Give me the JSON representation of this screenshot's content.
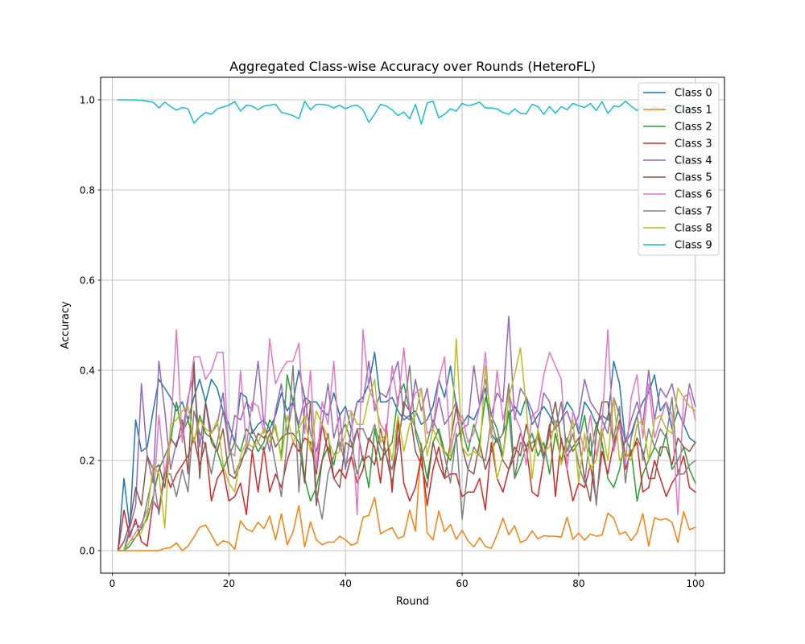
{
  "chart_data": {
    "type": "line",
    "title": "Aggregated Class-wise Accuracy over Rounds (HeteroFL)",
    "xlabel": "Round",
    "ylabel": "Accuracy",
    "xlim": [
      -2,
      105
    ],
    "ylim": [
      -0.05,
      1.05
    ],
    "x_ticks": [
      0,
      20,
      40,
      60,
      80,
      100
    ],
    "y_ticks": [
      0.0,
      0.2,
      0.4,
      0.6,
      0.8,
      1.0
    ],
    "x_tick_labels": [
      "0",
      "20",
      "40",
      "60",
      "80",
      "100"
    ],
    "y_tick_labels": [
      "0.0",
      "0.2",
      "0.4",
      "0.6",
      "0.8",
      "1.0"
    ],
    "grid": true,
    "legend_position": "top-right",
    "x": [
      1,
      2,
      3,
      4,
      5,
      6,
      7,
      8,
      9,
      10,
      11,
      12,
      13,
      14,
      15,
      16,
      17,
      18,
      19,
      20,
      21,
      22,
      23,
      24,
      25,
      26,
      27,
      28,
      29,
      30,
      31,
      32,
      33,
      34,
      35,
      36,
      37,
      38,
      39,
      40,
      41,
      42,
      43,
      44,
      45,
      46,
      47,
      48,
      49,
      50,
      51,
      52,
      53,
      54,
      55,
      56,
      57,
      58,
      59,
      60,
      61,
      62,
      63,
      64,
      65,
      66,
      67,
      68,
      69,
      70,
      71,
      72,
      73,
      74,
      75,
      76,
      77,
      78,
      79,
      80,
      81,
      82,
      83,
      84,
      85,
      86,
      87,
      88,
      89,
      90,
      91,
      92,
      93,
      94,
      95,
      96,
      97,
      98,
      99,
      100
    ],
    "series": [
      {
        "name": "Class 0",
        "color": "#1f77b4",
        "values": [
          0.0,
          0.16,
          0.05,
          0.29,
          0.22,
          0.23,
          0.31,
          0.38,
          0.36,
          0.34,
          0.31,
          0.33,
          0.29,
          0.34,
          0.38,
          0.33,
          0.38,
          0.36,
          0.31,
          0.28,
          0.24,
          0.35,
          0.34,
          0.26,
          0.28,
          0.29,
          0.27,
          0.3,
          0.35,
          0.31,
          0.33,
          0.4,
          0.34,
          0.33,
          0.33,
          0.31,
          0.3,
          0.35,
          0.3,
          0.32,
          0.27,
          0.33,
          0.34,
          0.37,
          0.44,
          0.33,
          0.33,
          0.34,
          0.31,
          0.29,
          0.3,
          0.31,
          0.28,
          0.29,
          0.32,
          0.38,
          0.34,
          0.41,
          0.32,
          0.28,
          0.3,
          0.29,
          0.32,
          0.36,
          0.26,
          0.24,
          0.26,
          0.3,
          0.32,
          0.3,
          0.34,
          0.28,
          0.3,
          0.32,
          0.3,
          0.27,
          0.29,
          0.33,
          0.31,
          0.26,
          0.33,
          0.31,
          0.28,
          0.3,
          0.29,
          0.42,
          0.37,
          0.24,
          0.26,
          0.3,
          0.33,
          0.35,
          0.39,
          0.31,
          0.33,
          0.27,
          0.31,
          0.28,
          0.25,
          0.24
        ]
      },
      {
        "name": "Class 1",
        "color": "#ff7f0e",
        "values": [
          0.0,
          0.0,
          0.0,
          0.0,
          0.0,
          0.0,
          0.0,
          0.0,
          0.005,
          0.007,
          0.017,
          0.0,
          0.01,
          0.03,
          0.052,
          0.057,
          0.035,
          0.011,
          0.022,
          0.018,
          0.003,
          0.066,
          0.048,
          0.042,
          0.063,
          0.049,
          0.077,
          0.024,
          0.082,
          0.013,
          0.041,
          0.1,
          0.008,
          0.064,
          0.024,
          0.013,
          0.019,
          0.019,
          0.032,
          0.024,
          0.012,
          0.017,
          0.074,
          0.078,
          0.118,
          0.037,
          0.045,
          0.051,
          0.027,
          0.032,
          0.09,
          0.043,
          0.239,
          0.04,
          0.024,
          0.088,
          0.042,
          0.058,
          0.025,
          0.045,
          0.022,
          0.008,
          0.029,
          0.009,
          0.005,
          0.035,
          0.072,
          0.035,
          0.055,
          0.018,
          0.024,
          0.044,
          0.026,
          0.033,
          0.032,
          0.032,
          0.03,
          0.074,
          0.025,
          0.039,
          0.023,
          0.037,
          0.032,
          0.035,
          0.083,
          0.072,
          0.036,
          0.042,
          0.022,
          0.04,
          0.082,
          0.01,
          0.073,
          0.068,
          0.071,
          0.063,
          0.018,
          0.087,
          0.046,
          0.052
        ]
      },
      {
        "name": "Class 2",
        "color": "#2ca02c",
        "values": [
          0.0,
          0.0,
          0.01,
          0.03,
          0.05,
          0.07,
          0.12,
          0.18,
          0.21,
          0.24,
          0.33,
          0.26,
          0.29,
          0.24,
          0.3,
          0.26,
          0.25,
          0.22,
          0.18,
          0.21,
          0.24,
          0.22,
          0.27,
          0.25,
          0.22,
          0.24,
          0.29,
          0.27,
          0.21,
          0.39,
          0.33,
          0.27,
          0.16,
          0.11,
          0.14,
          0.2,
          0.23,
          0.19,
          0.26,
          0.28,
          0.24,
          0.17,
          0.21,
          0.14,
          0.27,
          0.2,
          0.22,
          0.24,
          0.34,
          0.37,
          0.31,
          0.27,
          0.23,
          0.16,
          0.24,
          0.27,
          0.22,
          0.2,
          0.25,
          0.27,
          0.22,
          0.28,
          0.24,
          0.34,
          0.3,
          0.27,
          0.21,
          0.31,
          0.16,
          0.19,
          0.23,
          0.26,
          0.21,
          0.24,
          0.17,
          0.26,
          0.2,
          0.25,
          0.22,
          0.24,
          0.3,
          0.21,
          0.28,
          0.24,
          0.16,
          0.14,
          0.18,
          0.25,
          0.22,
          0.11,
          0.17,
          0.2,
          0.23,
          0.21,
          0.26,
          0.18,
          0.2,
          0.23,
          0.18,
          0.15
        ]
      },
      {
        "name": "Class 3",
        "color": "#d62728",
        "values": [
          0.0,
          0.09,
          0.03,
          0.07,
          0.02,
          0.01,
          0.11,
          0.09,
          0.18,
          0.14,
          0.17,
          0.19,
          0.21,
          0.25,
          0.19,
          0.24,
          0.11,
          0.16,
          0.18,
          0.11,
          0.12,
          0.15,
          0.08,
          0.22,
          0.13,
          0.23,
          0.13,
          0.17,
          0.14,
          0.2,
          0.24,
          0.22,
          0.25,
          0.24,
          0.17,
          0.28,
          0.22,
          0.16,
          0.18,
          0.16,
          0.21,
          0.15,
          0.18,
          0.25,
          0.23,
          0.15,
          0.28,
          0.13,
          0.29,
          0.15,
          0.11,
          0.14,
          0.21,
          0.1,
          0.18,
          0.23,
          0.16,
          0.17,
          0.17,
          0.12,
          0.13,
          0.13,
          0.16,
          0.09,
          0.24,
          0.16,
          0.13,
          0.18,
          0.21,
          0.26,
          0.23,
          0.13,
          0.12,
          0.2,
          0.28,
          0.12,
          0.25,
          0.18,
          0.11,
          0.15,
          0.14,
          0.19,
          0.11,
          0.22,
          0.17,
          0.24,
          0.28,
          0.18,
          0.22,
          0.24,
          0.13,
          0.14,
          0.2,
          0.16,
          0.12,
          0.15,
          0.17,
          0.21,
          0.14,
          0.13
        ]
      },
      {
        "name": "Class 4",
        "color": "#9467bd",
        "values": [
          0.0,
          0.0,
          0.05,
          0.1,
          0.37,
          0.21,
          0.15,
          0.42,
          0.31,
          0.18,
          0.24,
          0.26,
          0.34,
          0.39,
          0.23,
          0.33,
          0.26,
          0.28,
          0.35,
          0.22,
          0.3,
          0.29,
          0.33,
          0.31,
          0.42,
          0.28,
          0.22,
          0.31,
          0.37,
          0.26,
          0.33,
          0.28,
          0.34,
          0.26,
          0.22,
          0.28,
          0.37,
          0.25,
          0.3,
          0.18,
          0.27,
          0.33,
          0.33,
          0.42,
          0.31,
          0.35,
          0.34,
          0.38,
          0.42,
          0.3,
          0.29,
          0.38,
          0.31,
          0.36,
          0.27,
          0.34,
          0.28,
          0.3,
          0.33,
          0.27,
          0.28,
          0.41,
          0.32,
          0.38,
          0.3,
          0.35,
          0.33,
          0.52,
          0.29,
          0.36,
          0.34,
          0.31,
          0.27,
          0.35,
          0.33,
          0.27,
          0.29,
          0.31,
          0.27,
          0.3,
          0.38,
          0.33,
          0.31,
          0.29,
          0.26,
          0.34,
          0.3,
          0.24,
          0.29,
          0.33,
          0.28,
          0.4,
          0.29,
          0.36,
          0.34,
          0.37,
          0.31,
          0.28,
          0.37,
          0.32
        ]
      },
      {
        "name": "Class 5",
        "color": "#8c564b",
        "values": [
          0.0,
          0.02,
          0.06,
          0.14,
          0.1,
          0.21,
          0.18,
          0.19,
          0.14,
          0.25,
          0.23,
          0.29,
          0.17,
          0.42,
          0.16,
          0.33,
          0.24,
          0.22,
          0.27,
          0.17,
          0.16,
          0.19,
          0.23,
          0.22,
          0.26,
          0.25,
          0.27,
          0.23,
          0.25,
          0.26,
          0.26,
          0.24,
          0.15,
          0.33,
          0.1,
          0.2,
          0.26,
          0.16,
          0.14,
          0.24,
          0.23,
          0.27,
          0.2,
          0.21,
          0.19,
          0.27,
          0.21,
          0.15,
          0.23,
          0.33,
          0.31,
          0.22,
          0.19,
          0.14,
          0.24,
          0.19,
          0.16,
          0.24,
          0.32,
          0.23,
          0.18,
          0.17,
          0.24,
          0.18,
          0.22,
          0.25,
          0.2,
          0.18,
          0.23,
          0.21,
          0.28,
          0.22,
          0.26,
          0.21,
          0.27,
          0.33,
          0.24,
          0.21,
          0.23,
          0.25,
          0.16,
          0.11,
          0.26,
          0.33,
          0.33,
          0.23,
          0.29,
          0.21,
          0.21,
          0.25,
          0.22,
          0.16,
          0.16,
          0.23,
          0.23,
          0.19,
          0.25,
          0.23,
          0.22,
          0.24
        ]
      },
      {
        "name": "Class 6",
        "color": "#e377c2",
        "values": [
          0.0,
          0.0,
          0.02,
          0.04,
          0.06,
          0.09,
          0.1,
          0.3,
          0.17,
          0.26,
          0.49,
          0.24,
          0.33,
          0.43,
          0.43,
          0.38,
          0.4,
          0.44,
          0.44,
          0.22,
          0.21,
          0.4,
          0.23,
          0.33,
          0.32,
          0.26,
          0.47,
          0.37,
          0.4,
          0.42,
          0.42,
          0.46,
          0.26,
          0.4,
          0.18,
          0.33,
          0.28,
          0.42,
          0.22,
          0.31,
          0.31,
          0.08,
          0.49,
          0.36,
          0.33,
          0.28,
          0.26,
          0.41,
          0.32,
          0.45,
          0.31,
          0.35,
          0.36,
          0.26,
          0.27,
          0.38,
          0.43,
          0.22,
          0.28,
          0.3,
          0.24,
          0.26,
          0.32,
          0.44,
          0.25,
          0.4,
          0.29,
          0.35,
          0.3,
          0.27,
          0.19,
          0.3,
          0.31,
          0.39,
          0.44,
          0.41,
          0.38,
          0.18,
          0.31,
          0.27,
          0.22,
          0.3,
          0.21,
          0.28,
          0.49,
          0.22,
          0.28,
          0.19,
          0.34,
          0.39,
          0.25,
          0.37,
          0.25,
          0.29,
          0.33,
          0.3,
          0.08,
          0.34,
          0.35,
          0.29
        ]
      },
      {
        "name": "Class 7",
        "color": "#7f7f7f",
        "values": [
          0.0,
          0.0,
          0.04,
          0.06,
          0.05,
          0.11,
          0.17,
          0.08,
          0.17,
          0.17,
          0.12,
          0.18,
          0.13,
          0.31,
          0.26,
          0.23,
          0.17,
          0.24,
          0.31,
          0.24,
          0.17,
          0.2,
          0.22,
          0.27,
          0.24,
          0.22,
          0.26,
          0.19,
          0.12,
          0.24,
          0.41,
          0.13,
          0.32,
          0.33,
          0.13,
          0.07,
          0.17,
          0.21,
          0.24,
          0.19,
          0.21,
          0.27,
          0.27,
          0.24,
          0.28,
          0.23,
          0.21,
          0.18,
          0.25,
          0.31,
          0.41,
          0.26,
          0.21,
          0.24,
          0.29,
          0.26,
          0.21,
          0.15,
          0.26,
          0.07,
          0.18,
          0.23,
          0.21,
          0.2,
          0.29,
          0.24,
          0.26,
          0.37,
          0.16,
          0.24,
          0.23,
          0.24,
          0.25,
          0.2,
          0.26,
          0.27,
          0.33,
          0.22,
          0.26,
          0.19,
          0.15,
          0.26,
          0.1,
          0.26,
          0.3,
          0.25,
          0.32,
          0.15,
          0.25,
          0.3,
          0.2,
          0.27,
          0.23,
          0.27,
          0.25,
          0.34,
          0.17,
          0.17,
          0.19,
          0.2
        ]
      },
      {
        "name": "Class 8",
        "color": "#bcbd22",
        "values": [
          0.0,
          0.0,
          0.02,
          0.03,
          0.04,
          0.08,
          0.19,
          0.17,
          0.05,
          0.28,
          0.29,
          0.31,
          0.32,
          0.24,
          0.29,
          0.27,
          0.26,
          0.29,
          0.19,
          0.15,
          0.13,
          0.21,
          0.24,
          0.23,
          0.24,
          0.27,
          0.24,
          0.28,
          0.2,
          0.3,
          0.24,
          0.27,
          0.3,
          0.22,
          0.31,
          0.28,
          0.25,
          0.21,
          0.22,
          0.26,
          0.31,
          0.28,
          0.28,
          0.34,
          0.38,
          0.24,
          0.26,
          0.2,
          0.3,
          0.22,
          0.28,
          0.3,
          0.36,
          0.21,
          0.27,
          0.24,
          0.22,
          0.21,
          0.47,
          0.23,
          0.21,
          0.22,
          0.21,
          0.41,
          0.27,
          0.16,
          0.21,
          0.34,
          0.39,
          0.45,
          0.32,
          0.16,
          0.27,
          0.22,
          0.23,
          0.29,
          0.19,
          0.24,
          0.29,
          0.15,
          0.26,
          0.18,
          0.2,
          0.27,
          0.2,
          0.34,
          0.2,
          0.22,
          0.2,
          0.28,
          0.29,
          0.2,
          0.29,
          0.3,
          0.27,
          0.26,
          0.36,
          0.34,
          0.32,
          0.31
        ]
      },
      {
        "name": "Class 9",
        "color": "#17becf",
        "values": [
          1.0,
          1.0,
          1.0,
          1.0,
          0.999,
          0.997,
          0.995,
          0.982,
          0.995,
          0.985,
          0.977,
          0.983,
          0.98,
          0.948,
          0.962,
          0.972,
          0.968,
          0.98,
          0.984,
          0.988,
          0.996,
          0.975,
          0.988,
          0.986,
          0.978,
          0.986,
          0.988,
          0.99,
          0.972,
          0.969,
          0.965,
          0.958,
          0.997,
          0.978,
          0.99,
          0.99,
          0.988,
          0.982,
          0.988,
          0.98,
          0.986,
          0.988,
          0.978,
          0.95,
          0.968,
          0.99,
          0.986,
          0.978,
          0.965,
          0.973,
          0.958,
          0.99,
          0.946,
          0.993,
          0.997,
          0.96,
          0.968,
          0.98,
          0.975,
          0.992,
          0.987,
          0.99,
          0.995,
          0.982,
          0.982,
          0.98,
          0.972,
          0.968,
          0.98,
          0.97,
          0.969,
          0.99,
          0.985,
          0.968,
          0.985,
          0.97,
          0.985,
          0.978,
          0.992,
          0.987,
          0.983,
          0.992,
          0.976,
          0.996,
          0.97,
          0.986,
          0.985,
          0.997,
          0.986,
          0.976,
          0.985,
          0.975,
          0.985,
          0.978,
          0.988,
          0.985,
          0.982,
          0.975,
          0.982,
          0.978
        ]
      }
    ]
  }
}
